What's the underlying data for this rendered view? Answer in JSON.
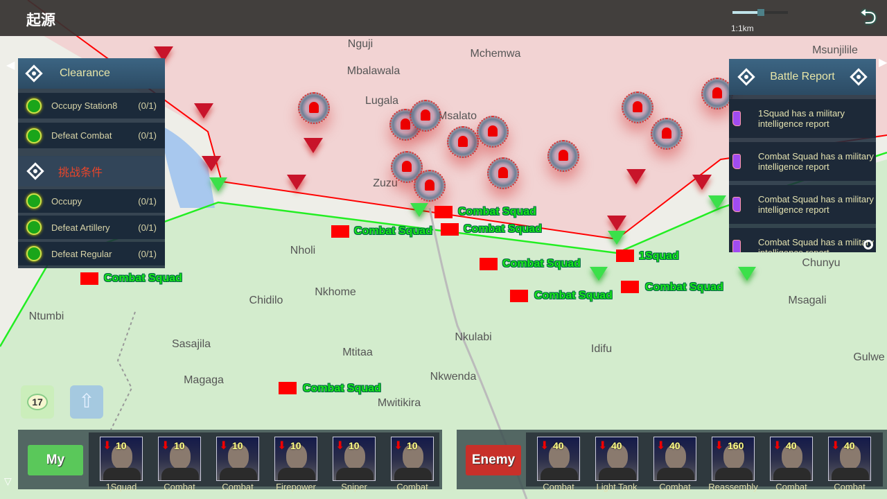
{
  "header": {
    "title": "起源",
    "scale_label": "1:1km",
    "zoom_level_percent": 60,
    "back_icon": "return-arrow-icon"
  },
  "colors": {
    "enemy_territory": "#f2d3d3",
    "own_territory": "#d3eccd",
    "enemy_border": "#ff0000",
    "own_border": "#22ee22",
    "unit_label": "#19e619"
  },
  "map": {
    "places": [
      "Nguji",
      "Mchemwa",
      "Msunjilile",
      "Mbalawala",
      "Lugala",
      "Msalato",
      "Zuzu",
      "Nholi",
      "Nkhome",
      "Chidilo",
      "Ntumbi",
      "Msagali",
      "Sasajila",
      "Mtitaa",
      "Nkulabi",
      "Idifu",
      "Magaga",
      "Nkwenda",
      "Mwitikira",
      "Gulwe",
      "Chunyu"
    ],
    "units": [
      "Combat Squad",
      "Combat Squad",
      "Combat Squad",
      "Combat Squad",
      "Combat Squad",
      "Combat Squad",
      "Combat Squad",
      "Combat Squad",
      "1Squad"
    ]
  },
  "clearance": {
    "title": "Clearance",
    "items": [
      {
        "label": "Occupy Station8",
        "count": "(0/1)"
      },
      {
        "label": "Defeat Combat",
        "count": "(0/1)"
      }
    ]
  },
  "challenge": {
    "title": "挑战条件",
    "items": [
      {
        "label": "Occupy",
        "count": "(0/1)"
      },
      {
        "label": "Defeat Artillery",
        "count": "(0/1)"
      },
      {
        "label": "Defeat Regular",
        "count": "(0/1)"
      }
    ]
  },
  "battle_report": {
    "title": "Battle Report",
    "items": [
      "1Squad has a military intelligence report",
      "Combat Squad has a military intelligence report",
      "Combat Squad has a military intelligence report",
      "Combat Squad has a military intelligence report"
    ]
  },
  "chat": {
    "count": "17"
  },
  "my_team": {
    "label": "My",
    "units": [
      {
        "name": "1Squad",
        "level": "10"
      },
      {
        "name": "Combat",
        "level": "10"
      },
      {
        "name": "Combat",
        "level": "10"
      },
      {
        "name": "Firepower",
        "level": "10"
      },
      {
        "name": "Sniper",
        "level": "10"
      },
      {
        "name": "Combat",
        "level": "10"
      }
    ]
  },
  "enemy_team": {
    "label": "Enemy",
    "units": [
      {
        "name": "Combat",
        "level": "40"
      },
      {
        "name": "Light Tank",
        "level": "40"
      },
      {
        "name": "Combat",
        "level": "40"
      },
      {
        "name": "Reassembly",
        "level": "160"
      },
      {
        "name": "Combat",
        "level": "40"
      },
      {
        "name": "Combat",
        "level": "40"
      }
    ]
  }
}
